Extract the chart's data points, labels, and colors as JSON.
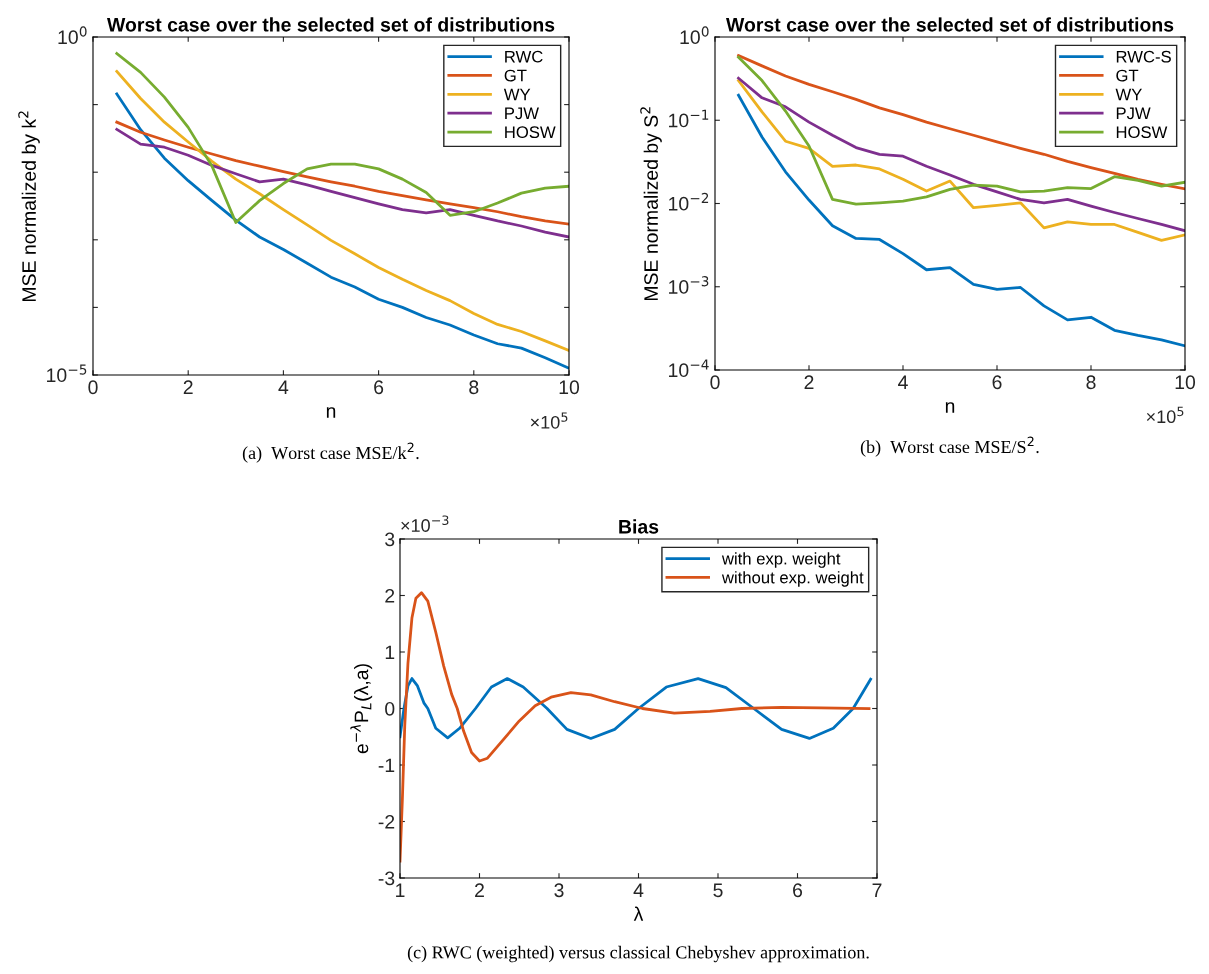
{
  "chart_data": [
    {
      "type": "line",
      "title": "Worst case over the selected set of distributions",
      "xlabel": "n",
      "ylabel": "MSE normalized by k$^{2}$",
      "log": "y",
      "legend": "top right",
      "grid": false,
      "x": [
        0.5,
        1,
        1.5,
        2,
        2.5,
        3,
        3.5,
        4,
        4.5,
        5,
        5.5,
        6,
        6.5,
        7,
        7.5,
        8,
        8.5,
        9,
        9.5,
        10
      ],
      "xlim": [
        0,
        10
      ],
      "xticks": [
        0,
        2,
        4,
        6,
        8,
        10
      ],
      "ylim": [
        1e-05,
        1
      ],
      "yticks": [
        {
          "value": 1e-05,
          "label": "10$^{−5}$"
        },
        {
          "value": 0.0001,
          "label": null
        },
        {
          "value": 0.001,
          "label": null
        },
        {
          "value": 0.01,
          "label": null
        },
        {
          "value": 0.1,
          "label": null
        },
        {
          "value": 1,
          "label": "10$^{0}$"
        }
      ],
      "series": [
        {
          "name": "RWC",
          "color": "#0072bd",
          "values": [
            0.144,
            0.0425,
            0.0161,
            0.0075,
            0.0038,
            0.00195,
            0.0011,
            0.00072,
            0.00045,
            0.00028,
            0.0002,
            0.000132,
            0.0001,
            7.1e-05,
            5.5e-05,
            3.9e-05,
            2.9e-05,
            2.5e-05,
            1.8e-05,
            1.26e-05
          ]
        },
        {
          "name": "GT",
          "color": "#d95319",
          "values": [
            0.055,
            0.039,
            0.03,
            0.0234,
            0.0186,
            0.0148,
            0.0123,
            0.0102,
            0.0085,
            0.0072,
            0.0062,
            0.0052,
            0.0045,
            0.0039,
            0.0034,
            0.003,
            0.0026,
            0.0022,
            0.0019,
            0.0017
          ]
        },
        {
          "name": "WY",
          "color": "#edb120",
          "values": [
            0.31,
            0.123,
            0.055,
            0.028,
            0.0145,
            0.0079,
            0.0048,
            0.0028,
            0.00166,
            0.00098,
            0.00062,
            0.00039,
            0.00026,
            0.000178,
            0.000126,
            8.1e-05,
            5.6e-05,
            4.4e-05,
            3.2e-05,
            2.3e-05
          ]
        },
        {
          "name": "PJW",
          "color": "#7e2f8e",
          "values": [
            0.043,
            0.026,
            0.0234,
            0.0178,
            0.0126,
            0.0095,
            0.0072,
            0.0079,
            0.0065,
            0.0052,
            0.0042,
            0.0034,
            0.0028,
            0.0025,
            0.0028,
            0.0023,
            0.0019,
            0.0016,
            0.0013,
            0.0011
          ]
        },
        {
          "name": "HOSW",
          "color": "#77ac30",
          "values": [
            0.57,
            0.3,
            0.129,
            0.046,
            0.0123,
            0.0018,
            0.0038,
            0.0068,
            0.0112,
            0.0132,
            0.0132,
            0.0112,
            0.0079,
            0.005,
            0.0023,
            0.0026,
            0.0035,
            0.0049,
            0.0058,
            0.0062
          ]
        }
      ],
      "annotations": [
        "×10$^{5}$",
        "(a)  Worst case MSE/k$^{2}$."
      ]
    },
    {
      "type": "line",
      "title": "Worst case over the selected set of distributions",
      "xlabel": "n",
      "ylabel": "MSE normalized by S$^{2}$",
      "log": "y",
      "legend": "top right",
      "grid": false,
      "x": [
        0.5,
        1,
        1.5,
        2,
        2.5,
        3,
        3.5,
        4,
        4.5,
        5,
        5.5,
        6,
        6.5,
        7,
        7.5,
        8,
        8.5,
        9,
        9.5,
        10
      ],
      "xlim": [
        0,
        10
      ],
      "xticks": [
        0,
        2,
        4,
        6,
        8,
        10
      ],
      "ylim": [
        0.0001,
        1
      ],
      "yticks": [
        {
          "value": 0.0001,
          "label": "10$^{−4}$"
        },
        {
          "value": 0.001,
          "label": "10$^{−3}$"
        },
        {
          "value": 0.01,
          "label": "10$^{−2}$"
        },
        {
          "value": 0.1,
          "label": "10$^{−1}$"
        },
        {
          "value": 1,
          "label": "10$^{0}$"
        }
      ],
      "series": [
        {
          "name": "RWC-S",
          "color": "#0072bd",
          "values": [
            0.2,
            0.063,
            0.024,
            0.011,
            0.0054,
            0.0038,
            0.0037,
            0.0025,
            0.0016,
            0.0017,
            0.00107,
            0.00093,
            0.00098,
            0.00059,
            0.0004,
            0.00043,
            0.0003,
            0.00026,
            0.00023,
            0.000195
          ]
        },
        {
          "name": "GT",
          "color": "#d95319",
          "values": [
            0.6,
            0.45,
            0.34,
            0.27,
            0.22,
            0.178,
            0.141,
            0.117,
            0.095,
            0.079,
            0.066,
            0.055,
            0.046,
            0.039,
            0.032,
            0.027,
            0.023,
            0.0195,
            0.017,
            0.015
          ]
        },
        {
          "name": "WY",
          "color": "#edb120",
          "values": [
            0.3,
            0.126,
            0.056,
            0.046,
            0.028,
            0.029,
            0.026,
            0.0195,
            0.0141,
            0.0186,
            0.0089,
            0.0095,
            0.0102,
            0.0051,
            0.006,
            0.0056,
            0.0056,
            0.0045,
            0.0036,
            0.0042
          ]
        },
        {
          "name": "PJW",
          "color": "#7e2f8e",
          "values": [
            0.32,
            0.186,
            0.145,
            0.095,
            0.066,
            0.047,
            0.039,
            0.037,
            0.028,
            0.022,
            0.017,
            0.0138,
            0.0112,
            0.0102,
            0.0112,
            0.0093,
            0.0078,
            0.0066,
            0.0056,
            0.0047
          ]
        },
        {
          "name": "HOSW",
          "color": "#77ac30",
          "values": [
            0.57,
            0.3,
            0.129,
            0.049,
            0.0112,
            0.0098,
            0.0102,
            0.0107,
            0.012,
            0.0148,
            0.0166,
            0.0162,
            0.0138,
            0.0141,
            0.0155,
            0.0151,
            0.021,
            0.019,
            0.0162,
            0.018
          ]
        }
      ],
      "annotations": [
        "×10$^{5}$",
        "(b)  Worst case MSE/S$^{2}$."
      ]
    },
    {
      "type": "line",
      "title": "Bias",
      "xlabel": "λ",
      "ylabel": "e$^{−λ}$P$_{L}$(λ,a)",
      "legend": "top right",
      "grid": false,
      "xlim": [
        1,
        7
      ],
      "xticks": [
        1,
        2,
        3,
        4,
        5,
        6,
        7
      ],
      "ylim": [
        -3,
        3
      ],
      "yticks": [
        -3,
        -2,
        -1,
        0,
        1,
        2,
        3
      ],
      "series": [
        {
          "name": "with exp. weight",
          "color": "#0072bd",
          "x": [
            1.0,
            1.05,
            1.1,
            1.15,
            1.22,
            1.3,
            1.35,
            1.45,
            1.6,
            1.75,
            1.95,
            2.15,
            2.35,
            2.55,
            2.85,
            3.1,
            3.4,
            3.7,
            4.0,
            4.35,
            4.75,
            5.1,
            5.45,
            5.8,
            6.15,
            6.45,
            6.7,
            6.92
          ],
          "values": [
            -0.5,
            0.0,
            0.4,
            0.53,
            0.4,
            0.1,
            0.0,
            -0.35,
            -0.52,
            -0.35,
            0.0,
            0.38,
            0.53,
            0.38,
            0.0,
            -0.37,
            -0.53,
            -0.37,
            0.0,
            0.38,
            0.53,
            0.37,
            0.0,
            -0.37,
            -0.53,
            -0.35,
            0.0,
            0.52
          ]
        },
        {
          "name": "without exp. weight",
          "color": "#d95319",
          "x": [
            1.0,
            1.03,
            1.06,
            1.1,
            1.15,
            1.2,
            1.27,
            1.35,
            1.45,
            1.55,
            1.65,
            1.72,
            1.8,
            1.9,
            2.0,
            2.1,
            2.3,
            2.5,
            2.7,
            2.9,
            3.15,
            3.4,
            3.7,
            4.05,
            4.45,
            4.9,
            5.3,
            5.8,
            6.3,
            6.9
          ],
          "values": [
            -2.7,
            -1.6,
            -0.3,
            0.8,
            1.6,
            1.95,
            2.05,
            1.9,
            1.35,
            0.75,
            0.25,
            0.0,
            -0.4,
            -0.78,
            -0.93,
            -0.88,
            -0.55,
            -0.22,
            0.05,
            0.2,
            0.28,
            0.24,
            0.12,
            0.0,
            -0.08,
            -0.05,
            0.0,
            0.02,
            0.01,
            0.0
          ]
        }
      ],
      "annotations": [
        "×10$^{−3}$",
        "(c) RWC (weighted) versus classical Chebyshev approximation."
      ]
    }
  ]
}
